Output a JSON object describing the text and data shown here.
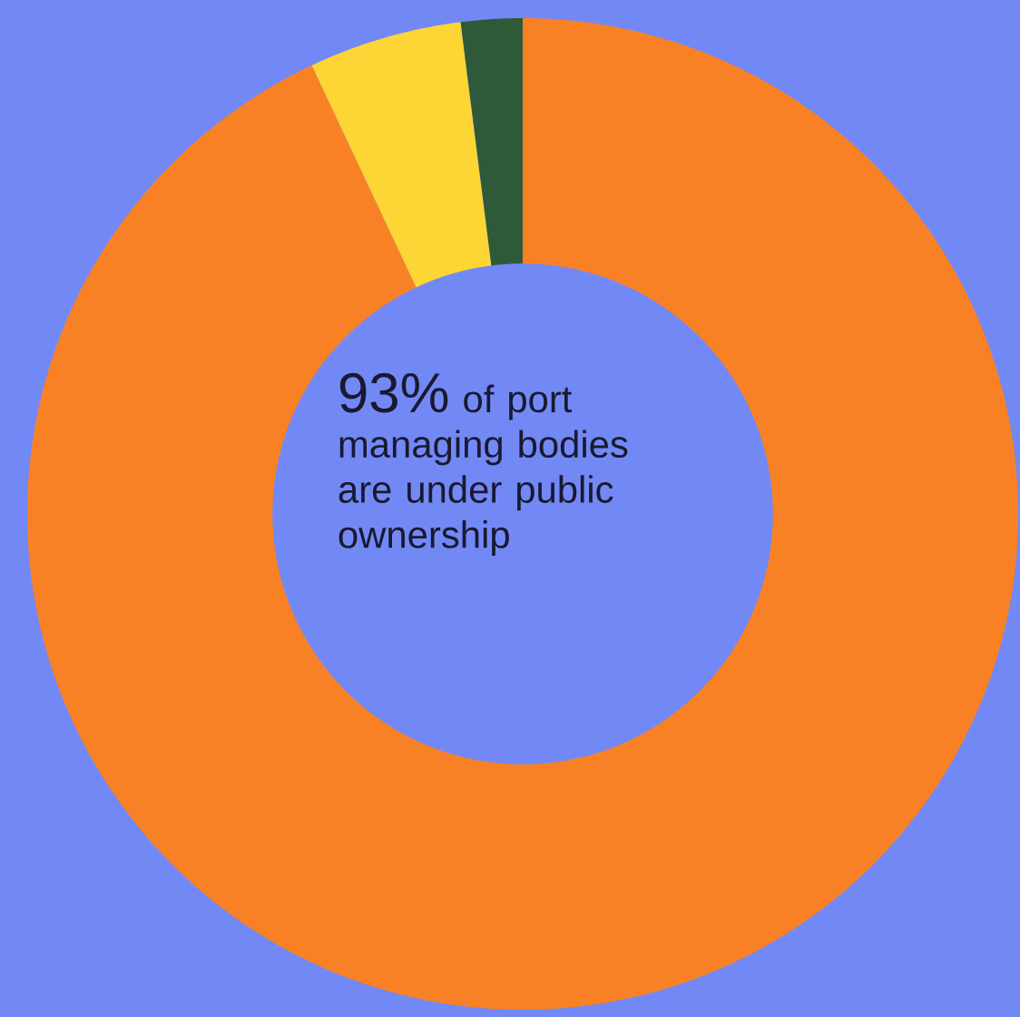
{
  "chart_data": {
    "type": "donut",
    "categories": [
      null,
      null,
      null
    ],
    "values": [
      93,
      5,
      2
    ],
    "colors": [
      "#f98125",
      "#fdd535",
      "#2f5a3a"
    ],
    "annotations": [
      "93%",
      "of port managing bodies are under public ownership"
    ]
  }
}
